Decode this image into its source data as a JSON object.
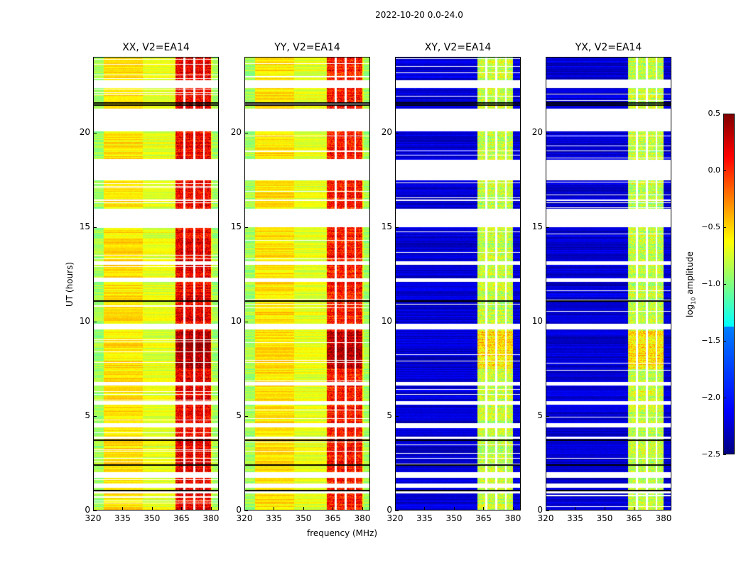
{
  "chart_data": {
    "type": "heatmap",
    "title": "2022-10-20 0.0-24.0",
    "xlabel": "frequency (MHz)",
    "ylabel": "UT (hours)",
    "xlim": [
      320,
      384
    ],
    "ylim": [
      0,
      24
    ],
    "xticks": [
      "320",
      "335",
      "350",
      "365",
      "380"
    ],
    "xtick_values": [
      320,
      335,
      350,
      365,
      380
    ],
    "yticks": [
      "0",
      "5",
      "10",
      "15",
      "20"
    ],
    "ytick_values": [
      0,
      5,
      10,
      15,
      20
    ],
    "colorbar": {
      "label": "log10 amplitude",
      "label_base": "log",
      "label_sub": "10",
      "label_rest": " amplitude",
      "range": [
        -2.5,
        0.5
      ],
      "ticks": [
        "0.5",
        "0.0",
        "−0.5",
        "−1.0",
        "−1.5",
        "−2.0",
        "−2.5"
      ],
      "tick_values": [
        0.5,
        0.0,
        -0.5,
        -1.0,
        -1.5,
        -2.0,
        -2.5
      ],
      "colormap": "jet"
    },
    "blank_time_ranges_hours": [
      [
        22.4,
        22.8
      ],
      [
        20.1,
        21.3
      ],
      [
        17.5,
        18.6
      ],
      [
        15.0,
        16.0
      ],
      [
        16.4,
        16.5
      ],
      [
        13.0,
        13.2
      ],
      [
        12.1,
        12.3
      ],
      [
        9.6,
        9.9
      ],
      [
        6.6,
        6.8
      ],
      [
        5.6,
        5.8
      ],
      [
        4.4,
        4.6
      ],
      [
        3.8,
        3.9
      ],
      [
        1.7,
        2.0
      ],
      [
        1.2,
        1.4
      ],
      [
        0.9,
        1.0
      ]
    ],
    "black_line_hours": [
      21.5,
      21.6,
      11.1,
      3.7,
      2.4,
      1.05
    ],
    "panels": [
      {
        "title": "XX, V2=EA14",
        "background_level": -0.6,
        "band_level": 0.15,
        "band_mhz": [
          362,
          380
        ]
      },
      {
        "title": "YY, V2=EA14",
        "background_level": -0.6,
        "band_level": 0.05,
        "band_mhz": [
          362,
          380
        ]
      },
      {
        "title": "XY, V2=EA14",
        "background_level": -2.25,
        "band_level": -0.8,
        "band_mhz": [
          362,
          380
        ]
      },
      {
        "title": "YX, V2=EA14",
        "background_level": -2.25,
        "band_level": -0.8,
        "band_mhz": [
          362,
          380
        ]
      }
    ]
  }
}
